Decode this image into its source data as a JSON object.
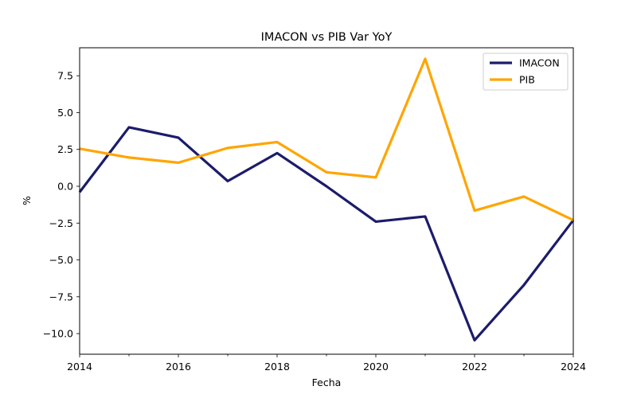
{
  "chart_data": {
    "type": "line",
    "title": "IMACON vs PIB Var YoY",
    "xlabel": "Fecha",
    "ylabel": "%",
    "x": [
      2014,
      2015,
      2016,
      2017,
      2018,
      2019,
      2020,
      2021,
      2022,
      2023,
      2024
    ],
    "xlim": [
      2014,
      2024
    ],
    "ylim": [
      -11.4,
      9.4
    ],
    "xticks": [
      "2014",
      "2016",
      "2018",
      "2020",
      "2022",
      "2024"
    ],
    "yticks": [
      "−10.0",
      "−7.5",
      "−5.0",
      "−2.5",
      "0.0",
      "2.5",
      "5.0",
      "7.5"
    ],
    "grid": false,
    "legend_position": "top-right",
    "series": [
      {
        "name": "IMACON",
        "color": "#1c1c6b",
        "values": [
          -0.4,
          4.0,
          3.3,
          0.35,
          2.25,
          0.0,
          -2.4,
          -2.05,
          -10.45,
          -6.7,
          -2.3
        ]
      },
      {
        "name": "PIB",
        "color": "#ffa500",
        "values": [
          2.55,
          1.95,
          1.6,
          2.6,
          3.0,
          0.95,
          0.6,
          8.65,
          -1.65,
          -0.7,
          -2.3
        ]
      }
    ]
  }
}
